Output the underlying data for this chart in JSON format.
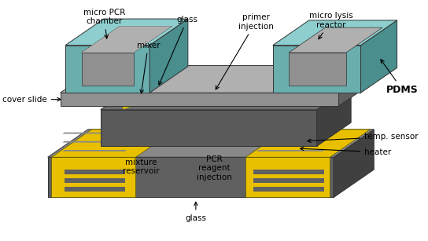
{
  "labels": {
    "micro_pcr_chamber": "micro PCR\nchamber",
    "glass_top": "glass",
    "primer_injection": "primer\ninjection",
    "micro_lysis_reactor": "micro lysis\nreactor",
    "mixer": "mixer",
    "cover_slide": "cover slide",
    "pdms": "PDMS",
    "mixture_reservoir": "mixture\nreservoir",
    "pcr_reagent_injection": "PCR\nreagent\ninjection",
    "temp_sensor": "temp. sensor",
    "heater": "heater",
    "glass_bottom": "glass"
  },
  "colors": {
    "teal_top": "#8ecece",
    "teal_face": "#6aaeae",
    "teal_side": "#4a8e8e",
    "gray_top": "#909090",
    "gray_face": "#707070",
    "gray_side": "#505050",
    "darkgray_top": "#888888",
    "darkgray_face": "#606060",
    "darkgray_side": "#404040",
    "yellow": "#e8c000",
    "yellow_dark": "#b09000",
    "white": "#ffffff",
    "black": "#000000",
    "silver_top": "#b0b0b0",
    "silver_face": "#909090",
    "silver_side": "#606060"
  },
  "figsize": [
    5.44,
    3.07
  ],
  "dpi": 100
}
